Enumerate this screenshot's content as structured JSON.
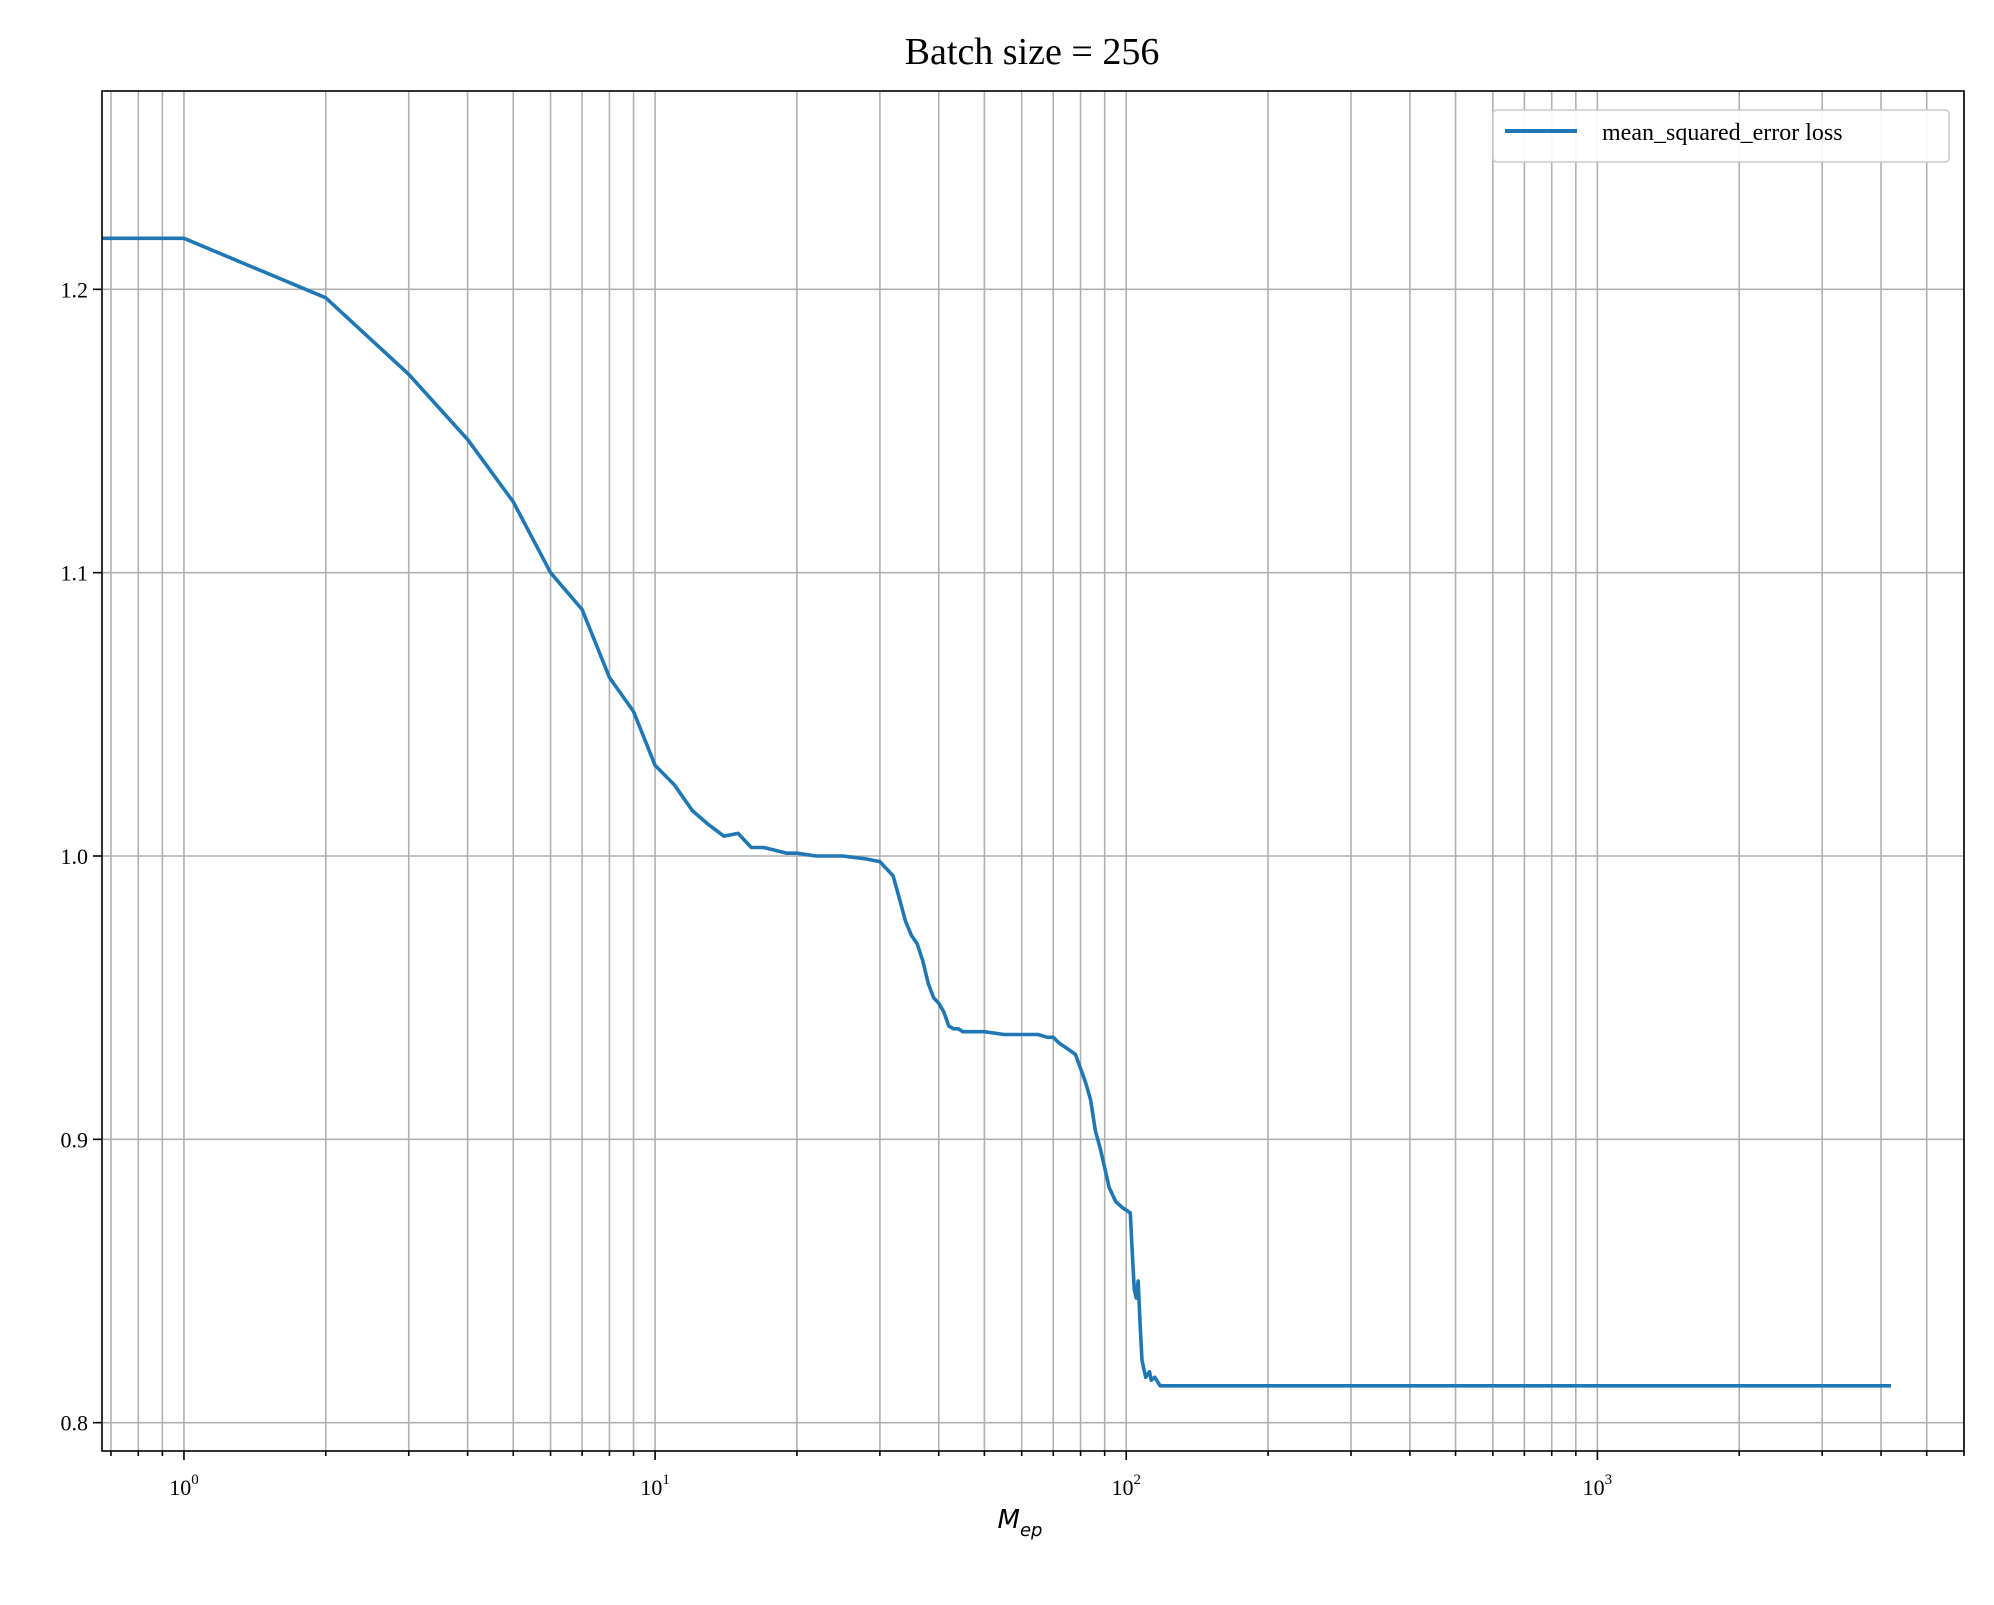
{
  "chart_data": {
    "type": "line",
    "title": "Batch size = 256",
    "xlabel": "M",
    "xlabel_subscript": "ep",
    "ylabel": "",
    "xscale": "log",
    "xlim": [
      0.67,
      6000
    ],
    "ylim": [
      0.79,
      1.27
    ],
    "yticks": [
      "0.8",
      "0.9",
      "1.0",
      "1.1",
      "1.2"
    ],
    "xticks": [
      {
        "base": "10",
        "exp": "0",
        "value": 1
      },
      {
        "base": "10",
        "exp": "1",
        "value": 10
      },
      {
        "base": "10",
        "exp": "2",
        "value": 100
      },
      {
        "base": "10",
        "exp": "3",
        "value": 1000
      }
    ],
    "grid": true,
    "legend": {
      "placement": "top-right"
    },
    "series": [
      {
        "name": "mean_squared_error loss",
        "color": "#1f77b4",
        "x": [
          0.67,
          1,
          2,
          3,
          4,
          5,
          6,
          7,
          8,
          9,
          10,
          11,
          12,
          13,
          14,
          15,
          16,
          17,
          18,
          19,
          20,
          22,
          25,
          28,
          30,
          32,
          33,
          34,
          35,
          36,
          37,
          38,
          39,
          40,
          41,
          42,
          43,
          44,
          45,
          48,
          50,
          55,
          60,
          65,
          68,
          70,
          72,
          75,
          78,
          80,
          82,
          84,
          86,
          88,
          90,
          92,
          95,
          98,
          100,
          102,
          103,
          104,
          105,
          106,
          107,
          108,
          110,
          112,
          113,
          115,
          118,
          120,
          125,
          130,
          150,
          200,
          500,
          1000,
          2000,
          4200
        ],
        "y": [
          1.218,
          1.218,
          1.197,
          1.17,
          1.147,
          1.125,
          1.1,
          1.087,
          1.063,
          1.051,
          1.032,
          1.025,
          1.016,
          1.011,
          1.007,
          1.008,
          1.003,
          1.003,
          1.002,
          1.001,
          1.001,
          1.0,
          1.0,
          0.999,
          0.998,
          0.993,
          0.985,
          0.977,
          0.972,
          0.969,
          0.963,
          0.955,
          0.95,
          0.948,
          0.945,
          0.94,
          0.939,
          0.939,
          0.938,
          0.938,
          0.938,
          0.937,
          0.937,
          0.937,
          0.936,
          0.936,
          0.934,
          0.932,
          0.93,
          0.925,
          0.92,
          0.914,
          0.903,
          0.897,
          0.89,
          0.883,
          0.878,
          0.876,
          0.875,
          0.874,
          0.86,
          0.847,
          0.844,
          0.85,
          0.835,
          0.822,
          0.816,
          0.818,
          0.815,
          0.816,
          0.813,
          0.813,
          0.813,
          0.813,
          0.813,
          0.813,
          0.813,
          0.813,
          0.813,
          0.813
        ]
      }
    ]
  }
}
